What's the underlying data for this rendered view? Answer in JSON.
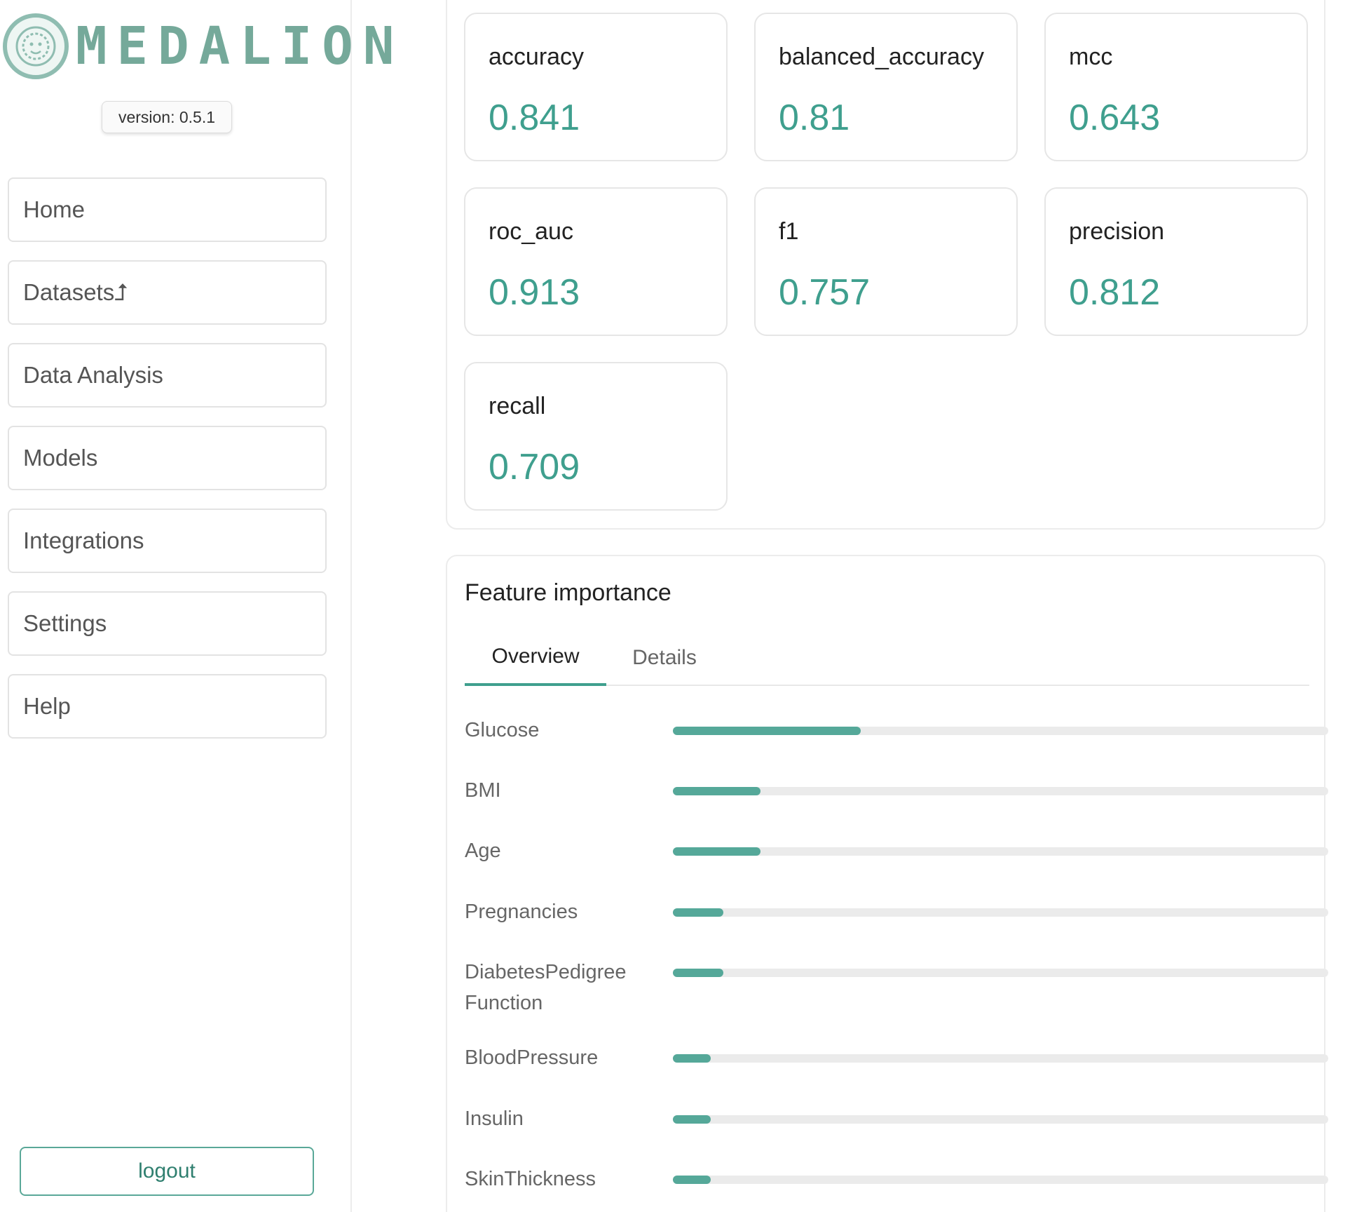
{
  "app": {
    "logo_text": "MEDALION",
    "version": "version: 0.5.1",
    "accent_color": "#3f9f8e"
  },
  "sidebar": {
    "items": [
      {
        "label": "Home"
      },
      {
        "label": "Datasets⮥"
      },
      {
        "label": "Data Analysis"
      },
      {
        "label": "Models"
      },
      {
        "label": "Integrations"
      },
      {
        "label": "Settings"
      },
      {
        "label": "Help"
      }
    ],
    "logout_label": "logout"
  },
  "metrics": [
    {
      "name": "accuracy",
      "value": "0.841"
    },
    {
      "name": "balanced_accuracy",
      "value": "0.81"
    },
    {
      "name": "mcc",
      "value": "0.643"
    },
    {
      "name": "roc_auc",
      "value": "0.913"
    },
    {
      "name": "f1",
      "value": "0.757"
    },
    {
      "name": "precision",
      "value": "0.812"
    },
    {
      "name": "recall",
      "value": "0.709"
    }
  ],
  "feature_importance": {
    "title": "Feature importance",
    "tabs": [
      {
        "label": "Overview",
        "active": true
      },
      {
        "label": "Details",
        "active": false
      }
    ],
    "features": [
      {
        "name": "Glucose",
        "importance": 0.287
      },
      {
        "name": "BMI",
        "importance": 0.134
      },
      {
        "name": "Age",
        "importance": 0.134
      },
      {
        "name": "Pregnancies",
        "importance": 0.077
      },
      {
        "name": "DiabetesPedigree Function",
        "importance": 0.077
      },
      {
        "name": "BloodPressure",
        "importance": 0.058
      },
      {
        "name": "Insulin",
        "importance": 0.058
      },
      {
        "name": "SkinThickness",
        "importance": 0.058
      }
    ]
  }
}
